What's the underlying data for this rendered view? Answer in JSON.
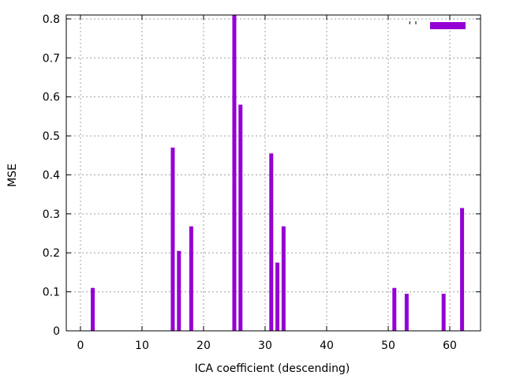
{
  "chart_data": {
    "type": "bar",
    "title": "",
    "xlabel": "ICA coefficient (descending)",
    "ylabel": "MSE",
    "xlim": [
      -2.3,
      65
    ],
    "ylim": [
      0,
      0.81
    ],
    "xticks": [
      0,
      10,
      20,
      30,
      40,
      50,
      60
    ],
    "yticks": [
      0,
      0.1,
      0.2,
      0.3,
      0.4,
      0.5,
      0.6,
      0.7,
      0.8
    ],
    "ytick_labels": [
      "0",
      "0.1",
      "0.2",
      "0.3",
      "0.4",
      "0.5",
      "0.6",
      "0.7",
      "0.8"
    ],
    "grid": true,
    "legend": {
      "position": "top-right",
      "label": "''",
      "color": "#9400d3"
    },
    "series": [
      {
        "color": "#9400d3",
        "points": [
          {
            "x": 2,
            "y": 0.11
          },
          {
            "x": 15,
            "y": 0.47
          },
          {
            "x": 16,
            "y": 0.205
          },
          {
            "x": 18,
            "y": 0.268
          },
          {
            "x": 25,
            "y": 0.81
          },
          {
            "x": 26,
            "y": 0.58
          },
          {
            "x": 31,
            "y": 0.455
          },
          {
            "x": 32,
            "y": 0.175
          },
          {
            "x": 33,
            "y": 0.268
          },
          {
            "x": 51,
            "y": 0.11
          },
          {
            "x": 53,
            "y": 0.095
          },
          {
            "x": 59,
            "y": 0.095
          },
          {
            "x": 62,
            "y": 0.315
          }
        ]
      }
    ]
  }
}
